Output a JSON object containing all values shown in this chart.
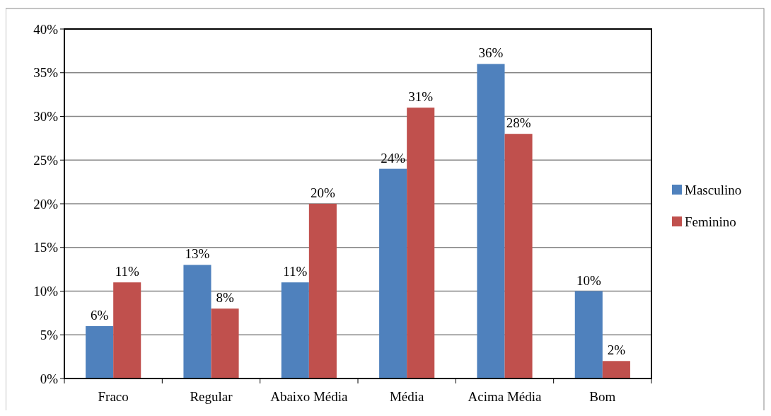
{
  "chart_data": {
    "type": "bar",
    "categories": [
      "Fraco",
      "Regular",
      "Abaixo Média",
      "Média",
      "Acima Média",
      "Bom"
    ],
    "series": [
      {
        "name": "Masculino",
        "color": "#4f81bd",
        "values": [
          6,
          13,
          11,
          24,
          36,
          10
        ],
        "value_labels": [
          "6%",
          "13%",
          "11%",
          "24%",
          "36%",
          "10%"
        ]
      },
      {
        "name": "Feminino",
        "color": "#c0504d",
        "values": [
          11,
          8,
          20,
          31,
          28,
          2
        ],
        "value_labels": [
          "11%",
          "8%",
          "20%",
          "31%",
          "28%",
          "2%"
        ]
      }
    ],
    "ylim": [
      0,
      40
    ],
    "yticks": [
      {
        "value": 0,
        "label": "0%"
      },
      {
        "value": 5,
        "label": "5%"
      },
      {
        "value": 10,
        "label": "10%"
      },
      {
        "value": 15,
        "label": "15%"
      },
      {
        "value": 20,
        "label": "20%"
      },
      {
        "value": 25,
        "label": "25%"
      },
      {
        "value": 30,
        "label": "30%"
      },
      {
        "value": 35,
        "label": "35%"
      },
      {
        "value": 40,
        "label": "40%"
      }
    ],
    "grid": "y",
    "legend": "right"
  }
}
